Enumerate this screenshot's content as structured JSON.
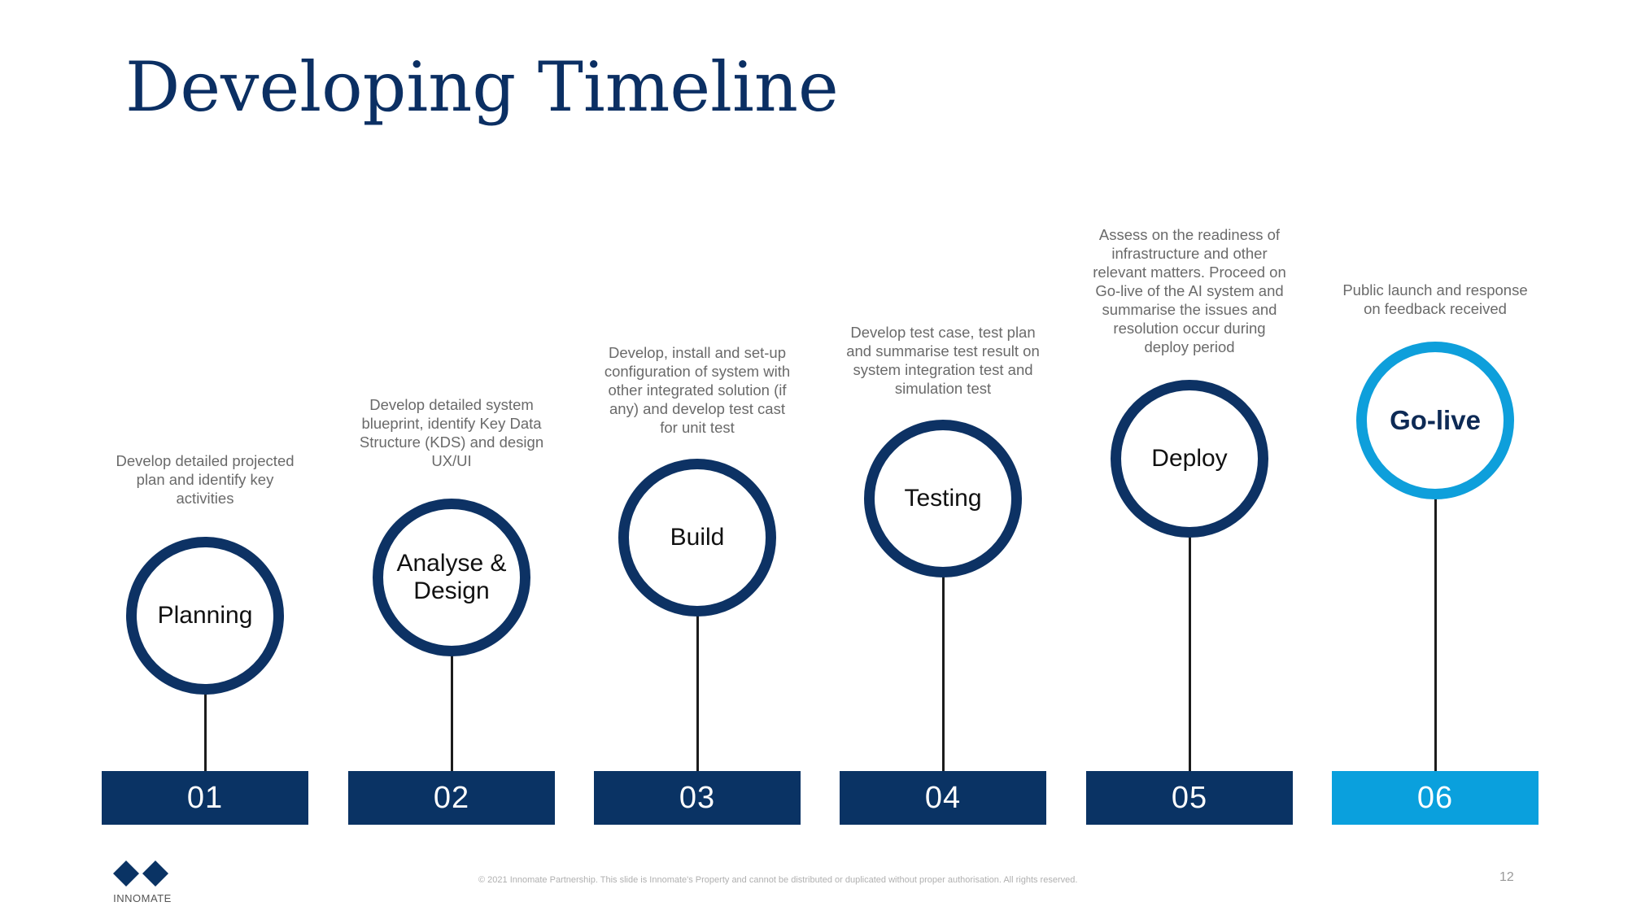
{
  "title": "Developing Timeline",
  "stages": [
    {
      "number": "01",
      "label": "Planning",
      "description": "Develop detailed projected plan and identify key activities",
      "active": false
    },
    {
      "number": "02",
      "label": "Analyse & Design",
      "description": "Develop detailed system blueprint, identify Key Data Structure (KDS) and design UX/UI",
      "active": false
    },
    {
      "number": "03",
      "label": "Build",
      "description": "Develop, install and set-up configuration of system with other integrated solution (if any) and develop test cast for unit test",
      "active": false
    },
    {
      "number": "04",
      "label": "Testing",
      "description": "Develop test case, test plan and summarise test result on system integration test and simulation test",
      "active": false
    },
    {
      "number": "05",
      "label": "Deploy",
      "description": "Assess on the readiness of infrastructure and other relevant matters. Proceed on Go-live of the AI system and summarise the issues and resolution occur during deploy period",
      "active": false
    },
    {
      "number": "06",
      "label": "Go-live",
      "description": "Public launch and response on feedback received",
      "active": true
    }
  ],
  "colors": {
    "primary": "#0a3364",
    "accent": "#0aa0dd"
  },
  "logo": {
    "text": "INNOMATE",
    "icon": "diamond-logo-icon"
  },
  "footer": "© 2021 Innomate Partnership. This slide is Innomate's Property and cannot be distributed or duplicated without proper authorisation. All rights reserved.",
  "page_number": "12"
}
